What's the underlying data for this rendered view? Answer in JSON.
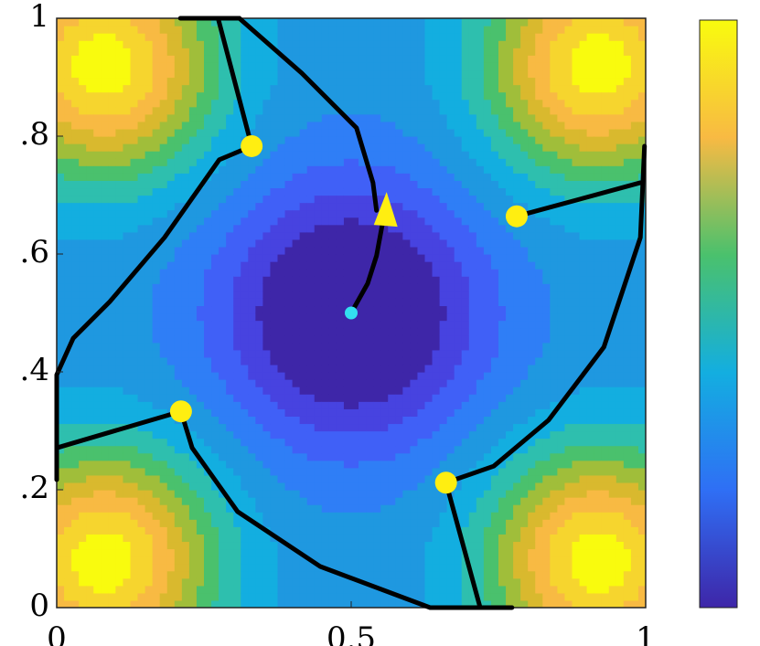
{
  "chart_data": {
    "type": "contour",
    "xlim": [
      0,
      1
    ],
    "ylim": [
      0,
      1
    ],
    "xticks": [
      0,
      0.5,
      1
    ],
    "yticks": [
      0,
      {
        "value": 0.2,
        "label": ".2"
      },
      {
        "value": 0.4,
        "label": ".4"
      },
      {
        "value": 0.6,
        "label": ".6"
      },
      {
        "value": 0.8,
        "label": ".8"
      },
      1
    ],
    "curve_color": "#000000",
    "curves": [
      {
        "x": [
          0.21,
          0.31
        ],
        "y": [
          1,
          1
        ]
      },
      {
        "x": [
          0.274,
          0.331
        ],
        "y": [
          1,
          0.783
        ]
      },
      {
        "x": [
          0.31,
          0.416,
          0.509,
          0.537,
          0.543
        ],
        "y": [
          1,
          0.907,
          0.814,
          0.721,
          0.674
        ]
      },
      {
        "x": [
          0.5,
          0.528,
          0.543,
          0.553
        ],
        "y": [
          0.5,
          0.55,
          0.597,
          0.651
        ]
      },
      {
        "x": [
          0.331,
          0.276,
          0.183,
          0.09,
          0.028,
          0,
          0,
          0
        ],
        "y": [
          0.783,
          0.76,
          0.628,
          0.519,
          0.457,
          0.395,
          0.36,
          0.217
        ]
      },
      {
        "x": [
          0.211,
          0
        ],
        "y": [
          0.333,
          0.271
        ]
      },
      {
        "x": [
          0.211,
          0.23,
          0.307,
          0.447,
          0.634,
          0.773
        ],
        "y": [
          0.333,
          0.271,
          0.163,
          0.07,
          0,
          0
        ]
      },
      {
        "x": [
          0.661,
          0.719
        ],
        "y": [
          0.212,
          0
        ]
      },
      {
        "x": [
          0.661,
          0.742,
          0.835,
          0.929,
          0.991,
          0.998
        ],
        "y": [
          0.212,
          0.24,
          0.318,
          0.442,
          0.628,
          0.783
        ]
      },
      {
        "x": [
          0.781,
          0.991
        ],
        "y": [
          0.664,
          0.721
        ]
      }
    ],
    "points": {
      "color": "#ffee11",
      "x": [
        0.331,
        0.781,
        0.211,
        0.661
      ],
      "y": [
        0.783,
        0.664,
        0.333,
        0.212
      ]
    },
    "start": {
      "color": "#33e0f0",
      "x": 0.5,
      "y": 0.5
    },
    "arrow": {
      "color": "#ffee11",
      "x": 0.557,
      "y": 0.665
    }
  }
}
